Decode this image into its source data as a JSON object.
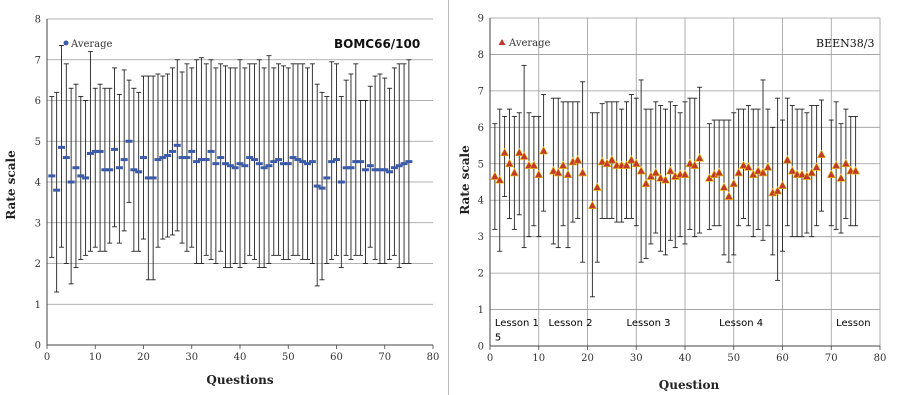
{
  "chart_data": [
    {
      "type": "scatter",
      "title": "BOMC66/100",
      "xlabel": "Questions",
      "ylabel": "Rate scale",
      "xlim": [
        0,
        80
      ],
      "ylim": [
        0,
        8
      ],
      "x_ticks": [
        "0",
        "10",
        "20",
        "30",
        "40",
        "50",
        "60",
        "70",
        "80"
      ],
      "y_ticks": [
        "0",
        "1",
        "2",
        "3",
        "4",
        "5",
        "6",
        "7",
        "8"
      ],
      "grid": "horizontal",
      "legend_position": "top-left",
      "marker_color": "#3b5ba9",
      "error_bar_color": "#222222",
      "series": [
        {
          "name": "Average",
          "x": [
            1,
            2,
            3,
            4,
            5,
            6,
            7,
            8,
            9,
            10,
            11,
            12,
            13,
            14,
            15,
            16,
            17,
            18,
            19,
            20,
            21,
            22,
            23,
            24,
            25,
            26,
            27,
            28,
            29,
            30,
            31,
            32,
            33,
            34,
            35,
            36,
            37,
            38,
            39,
            40,
            41,
            42,
            43,
            44,
            45,
            46,
            47,
            48,
            49,
            50,
            51,
            52,
            53,
            54,
            55,
            56,
            57,
            58,
            59,
            60,
            61,
            62,
            63,
            64,
            65,
            66,
            67,
            68,
            69,
            70,
            71,
            72,
            73,
            74,
            75
          ],
          "y": [
            4.15,
            3.8,
            4.85,
            4.6,
            4.0,
            4.35,
            4.15,
            4.1,
            4.7,
            4.75,
            4.75,
            4.3,
            4.3,
            4.8,
            4.35,
            4.55,
            5.0,
            4.3,
            4.25,
            4.6,
            4.1,
            4.1,
            4.55,
            4.6,
            4.65,
            4.75,
            4.9,
            4.6,
            4.6,
            4.75,
            4.5,
            4.55,
            4.55,
            4.75,
            4.45,
            4.6,
            4.45,
            4.4,
            4.35,
            4.45,
            4.4,
            4.6,
            4.55,
            4.45,
            4.35,
            4.4,
            4.5,
            4.55,
            4.45,
            4.45,
            4.6,
            4.55,
            4.5,
            4.45,
            4.5,
            3.9,
            3.85,
            4.1,
            4.5,
            4.55,
            4.0,
            4.35,
            4.35,
            4.5,
            4.5,
            4.3,
            4.4,
            4.3,
            4.3,
            4.3,
            4.25,
            4.35,
            4.4,
            4.45,
            4.5
          ],
          "y_low": [
            2.15,
            1.3,
            2.4,
            2.0,
            1.5,
            1.9,
            2.1,
            2.2,
            2.3,
            2.4,
            2.3,
            2.3,
            2.5,
            2.9,
            2.5,
            2.8,
            3.5,
            2.3,
            2.3,
            2.6,
            1.6,
            1.6,
            2.4,
            2.6,
            2.65,
            2.7,
            2.8,
            2.5,
            2.3,
            2.4,
            2.0,
            2.0,
            2.2,
            2.1,
            2.0,
            2.3,
            1.9,
            1.9,
            2.0,
            1.9,
            2.0,
            2.2,
            2.1,
            1.9,
            1.9,
            2.0,
            2.2,
            2.2,
            2.1,
            2.1,
            2.2,
            2.2,
            2.1,
            2.1,
            2.0,
            1.45,
            1.6,
            2.0,
            2.1,
            2.2,
            1.9,
            2.2,
            2.1,
            2.2,
            2.2,
            2.0,
            2.4,
            2.1,
            2.0,
            2.0,
            2.1,
            2.2,
            1.9,
            2.0,
            2.0
          ],
          "y_high": [
            6.1,
            6.2,
            7.35,
            6.9,
            6.3,
            6.4,
            6.1,
            6.0,
            7.2,
            6.3,
            6.4,
            6.3,
            6.3,
            6.8,
            6.15,
            6.75,
            6.5,
            6.3,
            6.2,
            6.6,
            6.6,
            6.6,
            6.65,
            6.6,
            6.65,
            6.8,
            7.0,
            6.7,
            6.9,
            6.8,
            7.0,
            7.05,
            6.9,
            7.0,
            6.8,
            6.9,
            6.85,
            6.8,
            6.8,
            7.0,
            6.8,
            6.9,
            6.9,
            7.0,
            6.8,
            7.1,
            6.8,
            6.9,
            6.85,
            6.8,
            6.9,
            6.9,
            6.9,
            6.8,
            6.9,
            6.4,
            6.2,
            6.1,
            6.95,
            6.9,
            6.1,
            6.5,
            6.65,
            6.9,
            6.0,
            6.0,
            6.35,
            6.6,
            6.65,
            6.55,
            6.3,
            6.8,
            6.9,
            6.9,
            7.0
          ]
        }
      ]
    },
    {
      "type": "scatter",
      "title": "BEEN38/3",
      "xlabel": "Question",
      "ylabel": "Rate scale",
      "xlim": [
        0,
        80
      ],
      "ylim": [
        0,
        9
      ],
      "x_ticks": [
        "0",
        "10",
        "20",
        "30",
        "40",
        "50",
        "60",
        "70",
        "80"
      ],
      "y_ticks": [
        "0",
        "1",
        "2",
        "3",
        "4",
        "5",
        "6",
        "7",
        "8",
        "9"
      ],
      "grid": "both",
      "legend_position": "top-left",
      "marker_color": "#c0392b",
      "marker_highlight": "#f1c40f",
      "error_bar_color": "#222222",
      "annotations": [
        {
          "text": "Lesson  1",
          "x": 1,
          "y": 0.55
        },
        {
          "text": "5",
          "x": 1,
          "y": 0.15
        },
        {
          "text": "Lesson  2",
          "x": 12,
          "y": 0.55
        },
        {
          "text": "Lesson  3",
          "x": 28,
          "y": 0.55
        },
        {
          "text": "Lesson  4",
          "x": 47,
          "y": 0.55
        },
        {
          "text": "Lesson",
          "x": 71,
          "y": 0.55
        }
      ],
      "series": [
        {
          "name": "Average",
          "x": [
            1,
            2,
            3,
            4,
            5,
            6,
            7,
            8,
            9,
            10,
            11,
            13,
            14,
            15,
            16,
            17,
            18,
            19,
            21,
            22,
            23,
            24,
            25,
            26,
            27,
            28,
            29,
            30,
            31,
            32,
            33,
            34,
            35,
            36,
            37,
            38,
            39,
            40,
            41,
            42,
            43,
            45,
            46,
            47,
            48,
            49,
            50,
            51,
            52,
            53,
            54,
            55,
            56,
            57,
            58,
            59,
            60,
            61,
            62,
            63,
            64,
            65,
            66,
            67,
            68,
            70,
            71,
            72,
            73,
            74,
            75
          ],
          "y": [
            4.65,
            4.55,
            5.3,
            5.0,
            4.75,
            5.3,
            5.2,
            4.95,
            4.95,
            4.7,
            5.35,
            4.8,
            4.75,
            4.95,
            4.7,
            5.05,
            5.1,
            4.75,
            3.85,
            4.35,
            5.05,
            5.0,
            5.1,
            4.95,
            4.95,
            4.95,
            5.1,
            5.0,
            4.8,
            4.45,
            4.65,
            4.75,
            4.6,
            4.55,
            4.8,
            4.65,
            4.7,
            4.7,
            5.0,
            4.95,
            5.15,
            4.6,
            4.7,
            4.75,
            4.35,
            4.1,
            4.45,
            4.75,
            4.95,
            4.9,
            4.7,
            4.8,
            4.75,
            4.9,
            4.2,
            4.25,
            4.4,
            5.1,
            4.8,
            4.7,
            4.7,
            4.65,
            4.75,
            4.9,
            5.25,
            4.7,
            4.95,
            4.6,
            5.0,
            4.8,
            4.8
          ],
          "y_low": [
            3.2,
            2.6,
            4.1,
            3.5,
            3.2,
            3.6,
            2.7,
            3.0,
            3.3,
            3.0,
            3.7,
            2.8,
            2.7,
            3.3,
            2.7,
            3.4,
            3.5,
            2.3,
            1.35,
            2.3,
            3.5,
            3.5,
            3.5,
            3.4,
            3.4,
            3.5,
            3.5,
            3.3,
            2.3,
            2.4,
            2.8,
            3.1,
            2.6,
            2.5,
            2.9,
            2.7,
            3.0,
            2.8,
            3.2,
            3.0,
            3.1,
            3.2,
            3.3,
            3.3,
            2.5,
            2.3,
            2.5,
            3.3,
            3.5,
            3.3,
            3.0,
            3.2,
            2.9,
            3.3,
            2.5,
            1.8,
            2.6,
            3.3,
            3.0,
            3.0,
            3.0,
            3.1,
            3.0,
            3.3,
            3.7,
            3.3,
            3.2,
            3.1,
            3.5,
            3.3,
            3.3
          ],
          "y_high": [
            6.1,
            6.5,
            6.3,
            6.5,
            6.3,
            6.4,
            7.7,
            6.4,
            6.3,
            6.3,
            6.9,
            6.8,
            6.8,
            6.7,
            6.7,
            6.7,
            6.7,
            7.25,
            6.4,
            6.4,
            6.65,
            6.7,
            6.7,
            6.7,
            6.5,
            6.7,
            6.9,
            6.8,
            7.3,
            6.5,
            6.5,
            6.7,
            6.6,
            6.5,
            6.7,
            6.6,
            6.4,
            6.7,
            6.8,
            6.8,
            7.1,
            6.1,
            6.2,
            6.2,
            6.2,
            6.2,
            6.4,
            6.5,
            6.5,
            6.6,
            6.5,
            6.5,
            7.3,
            6.5,
            6.0,
            6.8,
            6.2,
            6.8,
            6.6,
            6.5,
            6.5,
            6.4,
            6.6,
            6.6,
            6.75,
            6.2,
            6.7,
            6.1,
            6.5,
            6.3,
            6.3
          ]
        }
      ]
    }
  ]
}
